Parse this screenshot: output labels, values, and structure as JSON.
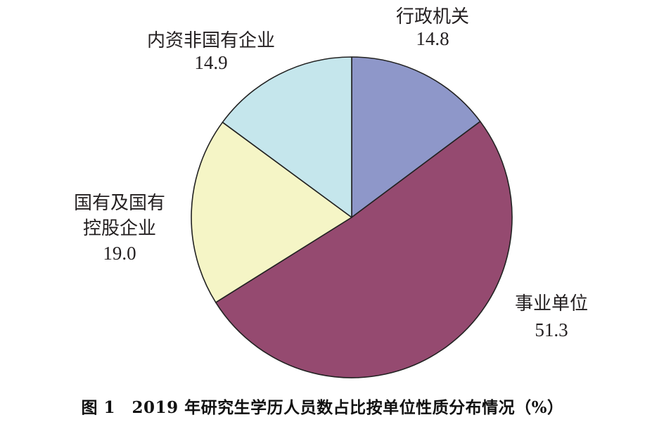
{
  "chart_data": {
    "type": "pie",
    "title": "图 1　2019 年研究生学历人员数占比按单位性质分布情况（%）",
    "start_angle_deg": 0,
    "direction": "clockwise",
    "slices": [
      {
        "label": "行政机关",
        "value": 14.8,
        "display": "14.8",
        "color": "#8e97c9"
      },
      {
        "label": "事业单位",
        "value": 51.3,
        "display": "51.3",
        "color": "#954a70"
      },
      {
        "label": "国有及国有控股企业",
        "label_lines": [
          "国有及国有",
          "控股企业"
        ],
        "value": 19.0,
        "display": "19.0",
        "color": "#f5f5c6"
      },
      {
        "label": "内资非国有企业",
        "value": 14.9,
        "display": "14.9",
        "color": "#c5e6ec"
      }
    ]
  }
}
